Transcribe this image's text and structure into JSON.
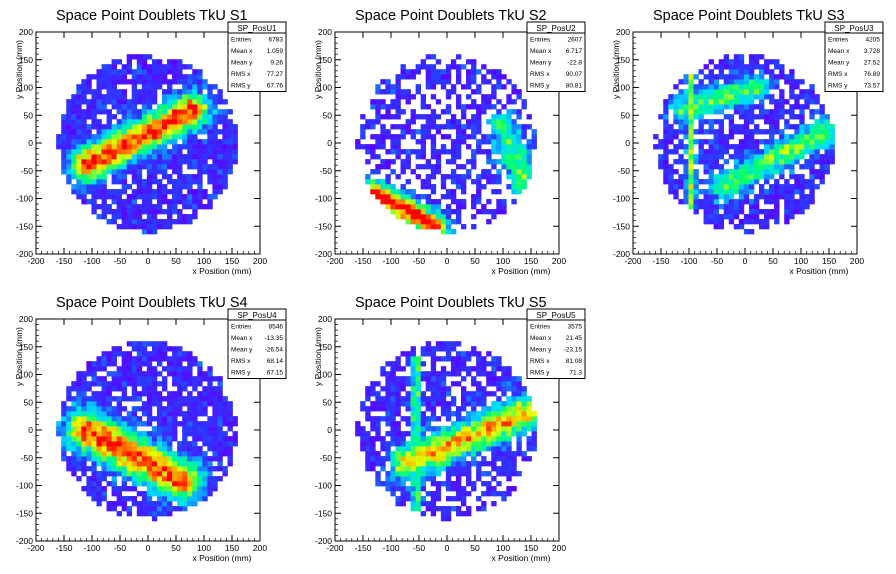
{
  "chart_data": [
    {
      "type": "heatmap",
      "title": "Space Point Doublets TkU S1",
      "xlabel": "x Position (mm)",
      "ylabel": "y Position (mm)",
      "xlim": [
        -200,
        200
      ],
      "ylim": [
        -200,
        200
      ],
      "xticks": [
        -200,
        -150,
        -100,
        -50,
        0,
        50,
        100,
        150,
        200
      ],
      "yticks": [
        -200,
        -150,
        -100,
        -50,
        0,
        50,
        100,
        150,
        200
      ],
      "stats": {
        "name": "SP_PosU1",
        "rows": [
          {
            "label": "Entries",
            "value": "6783"
          },
          {
            "label": "Mean x",
            "value": "1.059"
          },
          {
            "label": "Mean y",
            "value": "9.26"
          },
          {
            "label": "RMS x",
            "value": "77.27"
          },
          {
            "label": "RMS y",
            "value": "67.76"
          }
        ]
      },
      "bin_width": 9,
      "active_radius": 160,
      "fill_prob": 0.84,
      "bands": [
        {
          "x1": -110,
          "y1": -40,
          "x2": 80,
          "y2": 60,
          "width": 22,
          "boost": 1.0
        }
      ],
      "lines": [],
      "seed": 11
    },
    {
      "type": "heatmap",
      "title": "Space Point Doublets TkU S2",
      "xlabel": "x Position (mm)",
      "ylabel": "y Position (mm)",
      "xlim": [
        -200,
        200
      ],
      "ylim": [
        -200,
        200
      ],
      "xticks": [
        -200,
        -150,
        -100,
        -50,
        0,
        50,
        100,
        150,
        200
      ],
      "yticks": [
        -200,
        -150,
        -100,
        -50,
        0,
        50,
        100,
        150,
        200
      ],
      "stats": {
        "name": "SP_PosU2",
        "rows": [
          {
            "label": "Entries",
            "value": "2607"
          },
          {
            "label": "Mean x",
            "value": "6.717"
          },
          {
            "label": "Mean y",
            "value": "-22.8"
          },
          {
            "label": "RMS x",
            "value": "90.07"
          },
          {
            "label": "RMS y",
            "value": "80.81"
          }
        ]
      },
      "bin_width": 9,
      "active_radius": 160,
      "fill_prob": 0.55,
      "bands": [
        {
          "x1": -130,
          "y1": -90,
          "x2": -20,
          "y2": -150,
          "width": 16,
          "boost": 1.1
        },
        {
          "x1": 100,
          "y1": 30,
          "x2": 150,
          "y2": -100,
          "width": 20,
          "boost": 0.55
        }
      ],
      "lines": [],
      "seed": 22
    },
    {
      "type": "heatmap",
      "title": "Space Point Doublets TkU S3",
      "xlabel": "x Position (mm)",
      "ylabel": "y Position (mm)",
      "xlim": [
        -200,
        200
      ],
      "ylim": [
        -200,
        200
      ],
      "xticks": [
        -200,
        -150,
        -100,
        -50,
        0,
        50,
        100,
        150,
        200
      ],
      "yticks": [
        -200,
        -150,
        -100,
        -50,
        0,
        50,
        100,
        150,
        200
      ],
      "stats": {
        "name": "SP_PosU3",
        "rows": [
          {
            "label": "Entries",
            "value": "4205"
          },
          {
            "label": "Mean x",
            "value": "3.728"
          },
          {
            "label": "Mean y",
            "value": "27.52"
          },
          {
            "label": "RMS x",
            "value": "76.89"
          },
          {
            "label": "RMS y",
            "value": "73.57"
          }
        ]
      },
      "bin_width": 9,
      "active_radius": 160,
      "fill_prob": 0.72,
      "bands": [
        {
          "x1": -40,
          "y1": -80,
          "x2": 140,
          "y2": 20,
          "width": 18,
          "boost": 0.6
        },
        {
          "x1": -110,
          "y1": 60,
          "x2": 20,
          "y2": 100,
          "width": 18,
          "boost": 0.55
        }
      ],
      "lines": [
        {
          "x": -97,
          "y1": -120,
          "y2": 150,
          "boost": 0.65
        }
      ],
      "seed": 33
    },
    {
      "type": "heatmap",
      "title": "Space Point Doublets TkU S4",
      "xlabel": "x Position (mm)",
      "ylabel": "y Position (mm)",
      "xlim": [
        -200,
        200
      ],
      "ylim": [
        -200,
        200
      ],
      "xticks": [
        -200,
        -150,
        -100,
        -50,
        0,
        50,
        100,
        150,
        200
      ],
      "yticks": [
        -200,
        -150,
        -100,
        -50,
        0,
        50,
        100,
        150,
        200
      ],
      "stats": {
        "name": "SP_PosU4",
        "rows": [
          {
            "label": "Entries",
            "value": "8546"
          },
          {
            "label": "Mean x",
            "value": "-13.35"
          },
          {
            "label": "Mean y",
            "value": "-26.54"
          },
          {
            "label": "RMS x",
            "value": "68.14"
          },
          {
            "label": "RMS y",
            "value": "67.15"
          }
        ]
      },
      "bin_width": 9,
      "active_radius": 160,
      "fill_prob": 0.82,
      "bands": [
        {
          "x1": -110,
          "y1": 0,
          "x2": 60,
          "y2": -90,
          "width": 26,
          "boost": 1.0
        }
      ],
      "lines": [],
      "seed": 44
    },
    {
      "type": "heatmap",
      "title": "Space Point Doublets TkU S5",
      "xlabel": "x Position (mm)",
      "ylabel": "y Position (mm)",
      "xlim": [
        -200,
        200
      ],
      "ylim": [
        -200,
        200
      ],
      "xticks": [
        -200,
        -150,
        -100,
        -50,
        0,
        50,
        100,
        150,
        200
      ],
      "yticks": [
        -200,
        -150,
        -100,
        -50,
        0,
        50,
        100,
        150,
        200
      ],
      "stats": {
        "name": "SP_PosU5",
        "rows": [
          {
            "label": "Entries",
            "value": "3575"
          },
          {
            "label": "Mean x",
            "value": "21.45"
          },
          {
            "label": "Mean y",
            "value": "-23.15"
          },
          {
            "label": "RMS x",
            "value": "81.08"
          },
          {
            "label": "RMS y",
            "value": "71.3"
          }
        ]
      },
      "bin_width": 9,
      "active_radius": 160,
      "fill_prob": 0.72,
      "bands": [
        {
          "x1": -70,
          "y1": -60,
          "x2": 160,
          "y2": 40,
          "width": 22,
          "boost": 0.85
        }
      ],
      "lines": [
        {
          "x": -55,
          "y1": -150,
          "y2": 130,
          "boost": 0.6
        }
      ],
      "seed": 55
    }
  ]
}
